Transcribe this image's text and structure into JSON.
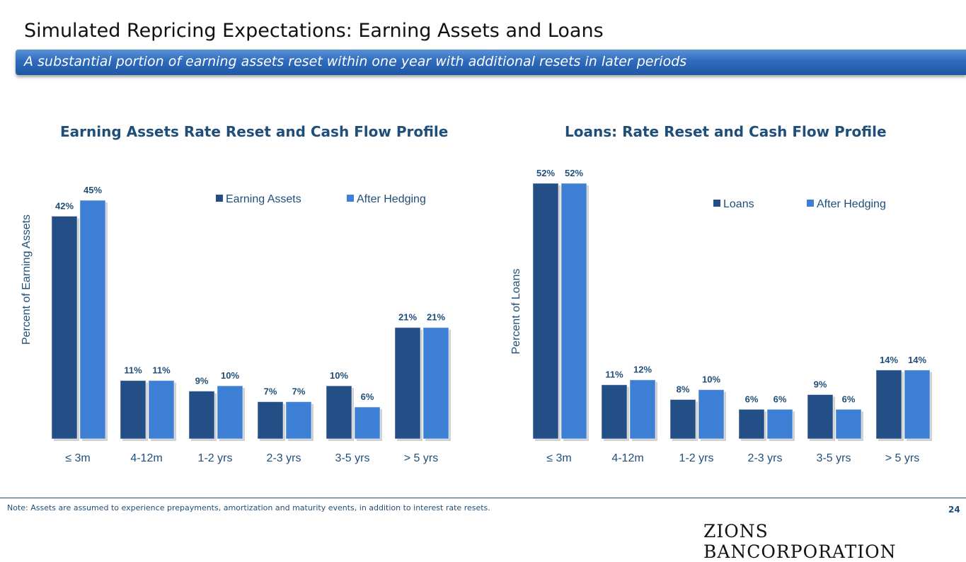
{
  "header": {
    "title": "Simulated Repricing Expectations: Earning Assets and Loans",
    "subtitle": "A substantial portion of earning assets reset within one year with additional resets in later periods"
  },
  "colors": {
    "dark": "#244f86",
    "light": "#3d7fd4",
    "label": "#1f4e79"
  },
  "chart_data": [
    {
      "type": "bar",
      "title": "Earning Assets Rate Reset and Cash Flow Profile",
      "ylabel": "Percent of Earning Assets",
      "categories": [
        "≤ 3m",
        "4-12m",
        "1-2 yrs",
        "2-3 yrs",
        "3-5 yrs",
        "> 5 yrs"
      ],
      "series": [
        {
          "name": "Earning Assets",
          "values": [
            42,
            11,
            9,
            7,
            10,
            21
          ]
        },
        {
          "name": "After Hedging",
          "values": [
            45,
            11,
            10,
            7,
            6,
            21
          ]
        }
      ],
      "legend": "top-right",
      "ylim": [
        0,
        45
      ]
    },
    {
      "type": "bar",
      "title": "Loans: Rate Reset and Cash Flow Profile",
      "ylabel": "Percent of Loans",
      "categories": [
        "≤ 3m",
        "4-12m",
        "1-2 yrs",
        "2-3 yrs",
        "3-5 yrs",
        "> 5 yrs"
      ],
      "series": [
        {
          "name": "Loans",
          "values": [
            52,
            11,
            8,
            6,
            9,
            14
          ]
        },
        {
          "name": "After Hedging",
          "values": [
            52,
            12,
            10,
            6,
            6,
            14
          ]
        }
      ],
      "legend": "top-right",
      "ylim": [
        0,
        52
      ]
    }
  ],
  "footer": {
    "note": "Note: Assets are assumed to experience prepayments, amortization and maturity events, in addition to interest rate resets.",
    "page": "24",
    "logo": "ZIONS BANCORPORATION"
  }
}
